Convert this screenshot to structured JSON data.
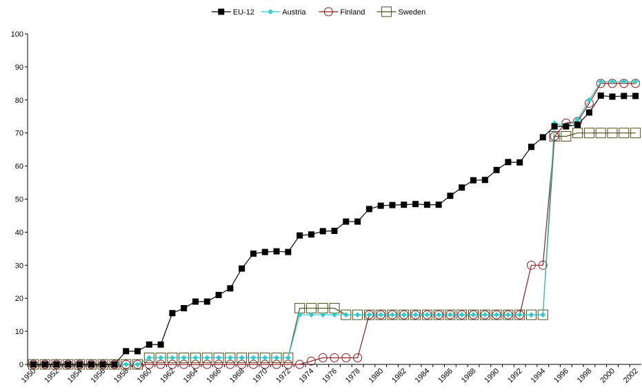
{
  "chart_data": {
    "type": "line",
    "categories": [
      1950,
      null,
      1952,
      null,
      1954,
      null,
      1956,
      null,
      1958,
      null,
      1960,
      null,
      1962,
      null,
      1964,
      null,
      1966,
      null,
      1968,
      null,
      1970,
      null,
      1972,
      null,
      1974,
      null,
      1976,
      null,
      1978,
      null,
      1980,
      null,
      1982,
      null,
      1984,
      null,
      1986,
      null,
      1988,
      null,
      1990,
      null,
      1992,
      null,
      1994,
      null,
      1996,
      null,
      1998,
      null,
      2000,
      null,
      2002
    ],
    "series": [
      {
        "name": "EU-12",
        "color": "#000000",
        "marker": "square-filled",
        "values": [
          0,
          0,
          0,
          0,
          0,
          0,
          0,
          0,
          4,
          4,
          6,
          6,
          15.5,
          17,
          19,
          19,
          21,
          23,
          29,
          33.5,
          34,
          34.2,
          34,
          39,
          39.3,
          40.3,
          40.4,
          43.2,
          43.2,
          47,
          48,
          48.2,
          48.3,
          48.5,
          48.3,
          48.3,
          51,
          53.5,
          55.7,
          55.8,
          58.8,
          61.2,
          61.1,
          65.8,
          68.7,
          72,
          72,
          72.5,
          76.2,
          81.3,
          81,
          81.2,
          81.2
        ]
      },
      {
        "name": "Austria",
        "color": "#33cccc",
        "marker": "diamond",
        "values": [
          0,
          0,
          0,
          0,
          0,
          0,
          0,
          0,
          0,
          0,
          2,
          2,
          2,
          2,
          2,
          2,
          2,
          2,
          2,
          2,
          2,
          2,
          2,
          15,
          15,
          15,
          15,
          15,
          15,
          15,
          15,
          15,
          15,
          15,
          15,
          15,
          15,
          15,
          15,
          15,
          15,
          15,
          15,
          15,
          15,
          73,
          72,
          74,
          80,
          85.5,
          85.5,
          85.5,
          85.5
        ]
      },
      {
        "name": "Finland",
        "color": "#8b1a1a",
        "marker": "circle-open",
        "values": [
          0,
          0,
          0,
          0,
          0,
          0,
          0,
          0,
          0,
          0,
          0,
          0,
          0,
          0,
          0,
          0,
          0,
          0,
          0,
          0,
          0,
          0,
          0,
          0,
          1,
          2,
          2,
          2,
          2,
          15,
          15,
          15,
          15,
          15,
          15,
          15,
          15,
          15,
          15,
          15,
          15,
          15,
          15,
          30,
          30,
          69,
          73,
          73.5,
          79,
          85,
          85,
          85,
          85
        ]
      },
      {
        "name": "Sweden",
        "color": "#4d4d1a",
        "marker": "square-open",
        "values": [
          0,
          0,
          0,
          0,
          0,
          0,
          0,
          0,
          0,
          0,
          2,
          2,
          2,
          2,
          2,
          2,
          2,
          2,
          2,
          2,
          2,
          2,
          2,
          17,
          17,
          17,
          17,
          15,
          15,
          15,
          15,
          15,
          15,
          15,
          15,
          15,
          15,
          15,
          15,
          15,
          15,
          15,
          15,
          15,
          15,
          69,
          69,
          70,
          70,
          70,
          70,
          70,
          70
        ]
      }
    ],
    "ylim": [
      0,
      100
    ],
    "yticks": [
      0,
      10,
      20,
      30,
      40,
      50,
      60,
      70,
      80,
      90,
      100
    ],
    "legend": "top"
  }
}
